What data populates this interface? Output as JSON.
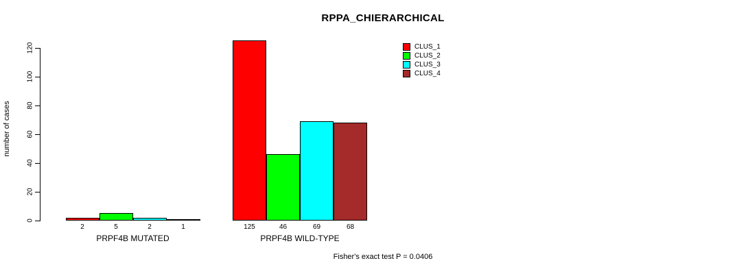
{
  "chart_data": {
    "type": "bar",
    "title": "RPPA_CHIERARCHICAL",
    "xlabel": "",
    "ylabel": "number of cases",
    "ylim": [
      0,
      125
    ],
    "yticks": [
      0,
      20,
      40,
      60,
      80,
      100,
      120
    ],
    "grid": false,
    "legend_position": "top-right-inside",
    "legend_border": false,
    "categories": [
      "PRPF4B MUTATED",
      "PRPF4B WILD-TYPE"
    ],
    "series": [
      {
        "name": "CLUS_1",
        "color": "#FF0000",
        "values": [
          2,
          125
        ]
      },
      {
        "name": "CLUS_2",
        "color": "#00FF00",
        "values": [
          5,
          46
        ]
      },
      {
        "name": "CLUS_3",
        "color": "#00FFFF",
        "values": [
          2,
          69
        ]
      },
      {
        "name": "CLUS_4",
        "color": "#A52A2A",
        "values": [
          1,
          68
        ]
      }
    ],
    "bar_value_labels_shown": true,
    "bar_border_color": "#000000",
    "annotation": "Fisher's exact test P = 0.0406"
  }
}
